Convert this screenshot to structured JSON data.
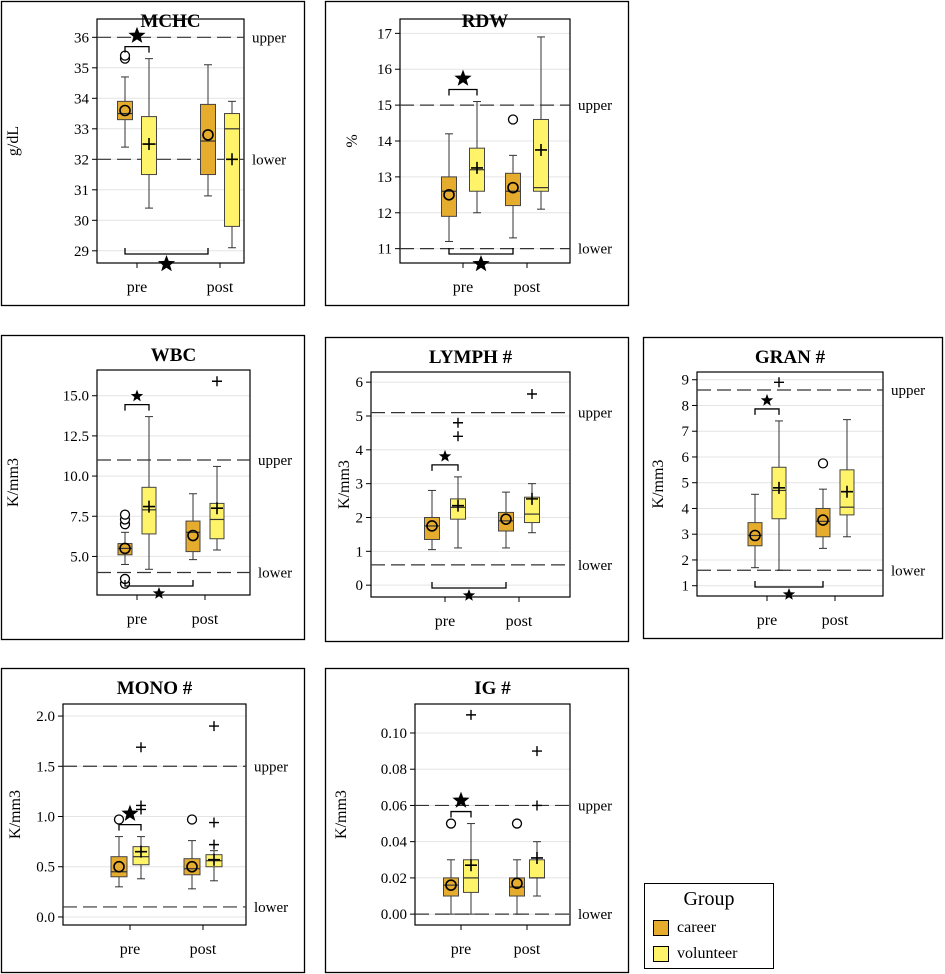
{
  "colors": {
    "career": "#e6ac2e",
    "volunteer": "#fff36a",
    "frame": "#000000",
    "grid": "#e4e4e4"
  },
  "legend": {
    "title": "Group",
    "items": [
      {
        "label": "career",
        "color": "#e6ac2e"
      },
      {
        "label": "volunteer",
        "color": "#fff36a"
      }
    ]
  },
  "chart_data": [
    {
      "type": "boxplot",
      "id": "mchc",
      "title": "MCHC",
      "ylabel": "g/dL",
      "ylim": [
        28.6,
        36.6
      ],
      "yticks": [
        29,
        30,
        31,
        32,
        33,
        34,
        35,
        36
      ],
      "ytick_labels": [
        "29",
        "30",
        "31",
        "32",
        "33",
        "34",
        "35",
        "36"
      ],
      "categories": [
        "pre",
        "post"
      ],
      "reference_lines": [
        {
          "label": "upper",
          "value": 36
        },
        {
          "label": "lower",
          "value": 32
        }
      ],
      "series": [
        {
          "group": "career",
          "category": "pre",
          "whisker_low": 32.4,
          "q1": 33.3,
          "median": 33.5,
          "q3": 33.9,
          "whisker_high": 34.7,
          "mean": 33.6,
          "mean_marker": "circle",
          "outliers": [
            35.3,
            35.4
          ],
          "outlier_marker": "circle"
        },
        {
          "group": "volunteer",
          "category": "pre",
          "whisker_low": 30.4,
          "q1": 31.5,
          "median": 32.5,
          "q3": 33.4,
          "whisker_high": 35.3,
          "mean": 32.5,
          "mean_marker": "plus",
          "outliers": [],
          "outlier_marker": "plus"
        },
        {
          "group": "career",
          "category": "post",
          "whisker_low": 30.8,
          "q1": 31.5,
          "median": 32.6,
          "q3": 33.8,
          "whisker_high": 35.1,
          "mean": 32.8,
          "mean_marker": "circle",
          "outliers": [],
          "outlier_marker": "circle"
        },
        {
          "group": "volunteer",
          "category": "post",
          "whisker_low": 29.1,
          "q1": 29.8,
          "median": 33.0,
          "q3": 33.5,
          "whisker_high": 33.9,
          "mean": 32.0,
          "mean_marker": "plus",
          "outliers": [],
          "outlier_marker": "plus"
        }
      ],
      "significance": [
        {
          "from": "pre",
          "from_group": "career",
          "to": "pre",
          "to_group": "volunteer",
          "position": "top",
          "star": "large"
        },
        {
          "from": "pre",
          "from_group": "career",
          "to": "post",
          "to_group": "career",
          "position": "bottom",
          "star": "large"
        }
      ]
    },
    {
      "type": "boxplot",
      "id": "rdw",
      "title": "RDW",
      "ylabel": "%",
      "ylim": [
        10.6,
        17.4
      ],
      "yticks": [
        11,
        12,
        13,
        14,
        15,
        16,
        17
      ],
      "ytick_labels": [
        "11",
        "12",
        "13",
        "14",
        "15",
        "16",
        "17"
      ],
      "categories": [
        "pre",
        "post"
      ],
      "reference_lines": [
        {
          "label": "upper",
          "value": 15
        },
        {
          "label": "lower",
          "value": 11
        }
      ],
      "series": [
        {
          "group": "career",
          "category": "pre",
          "whisker_low": 11.2,
          "q1": 11.9,
          "median": 12.6,
          "q3": 13.0,
          "whisker_high": 14.2,
          "mean": 12.5,
          "mean_marker": "circle",
          "outliers": [],
          "outlier_marker": "circle"
        },
        {
          "group": "volunteer",
          "category": "pre",
          "whisker_low": 12.0,
          "q1": 12.6,
          "median": 13.2,
          "q3": 13.8,
          "whisker_high": 15.1,
          "mean": 13.25,
          "mean_marker": "plus",
          "outliers": [],
          "outlier_marker": "plus"
        },
        {
          "group": "career",
          "category": "post",
          "whisker_low": 11.3,
          "q1": 12.2,
          "median": 12.6,
          "q3": 13.1,
          "whisker_high": 13.6,
          "mean": 12.7,
          "mean_marker": "circle",
          "outliers": [
            14.6
          ],
          "outlier_marker": "circle"
        },
        {
          "group": "volunteer",
          "category": "post",
          "whisker_low": 12.1,
          "q1": 12.6,
          "median": 12.7,
          "q3": 14.6,
          "whisker_high": 16.9,
          "mean": 13.75,
          "mean_marker": "plus",
          "outliers": [],
          "outlier_marker": "plus"
        }
      ],
      "significance": [
        {
          "from": "pre",
          "from_group": "career",
          "to": "pre",
          "to_group": "volunteer",
          "position": "top",
          "star": "large"
        },
        {
          "from": "pre",
          "from_group": "career",
          "to": "post",
          "to_group": "career",
          "position": "bottom",
          "star": "large"
        }
      ]
    },
    {
      "type": "boxplot",
      "id": "wbc",
      "title": "WBC",
      "ylabel": "K/mm3",
      "ylim": [
        2.6,
        16.6
      ],
      "yticks": [
        5,
        7.5,
        10,
        12.5,
        15
      ],
      "ytick_labels": [
        "5.0",
        "7.5",
        "10.0",
        "12.5",
        "15.0"
      ],
      "categories": [
        "pre",
        "post"
      ],
      "reference_lines": [
        {
          "label": "upper",
          "value": 11
        },
        {
          "label": "lower",
          "value": 4
        }
      ],
      "series": [
        {
          "group": "career",
          "category": "pre",
          "whisker_low": 4.5,
          "q1": 5.1,
          "median": 5.5,
          "q3": 5.8,
          "whisker_high": 6.5,
          "mean": 5.5,
          "mean_marker": "circle",
          "outliers": [
            3.3,
            3.6,
            7.0,
            7.3,
            7.6
          ],
          "outlier_marker": "circle"
        },
        {
          "group": "volunteer",
          "category": "pre",
          "whisker_low": 4.2,
          "q1": 6.4,
          "median": 7.9,
          "q3": 9.3,
          "whisker_high": 13.7,
          "mean": 8.1,
          "mean_marker": "plus",
          "outliers": [],
          "outlier_marker": "plus"
        },
        {
          "group": "career",
          "category": "post",
          "whisker_low": 4.8,
          "q1": 5.3,
          "median": 6.5,
          "q3": 7.2,
          "whisker_high": 8.9,
          "mean": 6.3,
          "mean_marker": "circle",
          "outliers": [],
          "outlier_marker": "circle"
        },
        {
          "group": "volunteer",
          "category": "post",
          "whisker_low": 5.4,
          "q1": 6.1,
          "median": 7.3,
          "q3": 8.3,
          "whisker_high": 10.6,
          "mean": 8.0,
          "mean_marker": "plus",
          "outliers": [
            15.9
          ],
          "outlier_marker": "plus"
        }
      ],
      "significance": [
        {
          "from": "pre",
          "from_group": "career",
          "to": "pre",
          "to_group": "volunteer",
          "position": "top",
          "star": "small"
        },
        {
          "from": "pre",
          "from_group": "career",
          "to": "post",
          "to_group": "career",
          "position": "bottom",
          "star": "small"
        }
      ]
    },
    {
      "type": "boxplot",
      "id": "lymph",
      "title": "LYMPH #",
      "ylabel": "K/mm3",
      "ylim": [
        -0.35,
        6.3
      ],
      "yticks": [
        0,
        1,
        2,
        3,
        4,
        5,
        6
      ],
      "ytick_labels": [
        "0",
        "1",
        "2",
        "3",
        "4",
        "5",
        "6"
      ],
      "categories": [
        "pre",
        "post"
      ],
      "reference_lines": [
        {
          "label": "upper",
          "value": 5.1
        },
        {
          "label": "lower",
          "value": 0.6
        }
      ],
      "series": [
        {
          "group": "career",
          "category": "pre",
          "whisker_low": 1.05,
          "q1": 1.35,
          "median": 1.75,
          "q3": 2.0,
          "whisker_high": 2.8,
          "mean": 1.75,
          "mean_marker": "circle",
          "outliers": [],
          "outlier_marker": "circle"
        },
        {
          "group": "volunteer",
          "category": "pre",
          "whisker_low": 1.1,
          "q1": 1.95,
          "median": 2.3,
          "q3": 2.55,
          "whisker_high": 3.2,
          "mean": 2.35,
          "mean_marker": "plus",
          "outliers": [
            4.4,
            4.8
          ],
          "outlier_marker": "plus"
        },
        {
          "group": "career",
          "category": "post",
          "whisker_low": 1.1,
          "q1": 1.6,
          "median": 1.9,
          "q3": 2.15,
          "whisker_high": 2.75,
          "mean": 1.95,
          "mean_marker": "circle",
          "outliers": [],
          "outlier_marker": "circle"
        },
        {
          "group": "volunteer",
          "category": "post",
          "whisker_low": 1.55,
          "q1": 1.85,
          "median": 2.1,
          "q3": 2.6,
          "whisker_high": 3.0,
          "mean": 2.55,
          "mean_marker": "plus",
          "outliers": [
            5.65
          ],
          "outlier_marker": "plus"
        }
      ],
      "significance": [
        {
          "from": "pre",
          "from_group": "career",
          "to": "pre",
          "to_group": "volunteer",
          "position": "top",
          "star": "small"
        },
        {
          "from": "pre",
          "from_group": "career",
          "to": "post",
          "to_group": "career",
          "position": "bottom",
          "star": "small"
        }
      ]
    },
    {
      "type": "boxplot",
      "id": "gran",
      "title": "GRAN #",
      "ylabel": "K/mm3",
      "ylim": [
        0.6,
        9.3
      ],
      "yticks": [
        1,
        2,
        3,
        4,
        5,
        6,
        7,
        8,
        9
      ],
      "ytick_labels": [
        "1",
        "2",
        "3",
        "4",
        "5",
        "6",
        "7",
        "8",
        "9"
      ],
      "categories": [
        "pre",
        "post"
      ],
      "reference_lines": [
        {
          "label": "upper",
          "value": 8.6
        },
        {
          "label": "lower",
          "value": 1.6
        }
      ],
      "series": [
        {
          "group": "career",
          "category": "pre",
          "whisker_low": 1.7,
          "q1": 2.55,
          "median": 2.95,
          "q3": 3.45,
          "whisker_high": 4.55,
          "mean": 2.95,
          "mean_marker": "circle",
          "outliers": [],
          "outlier_marker": "circle"
        },
        {
          "group": "volunteer",
          "category": "pre",
          "whisker_low": 1.6,
          "q1": 3.6,
          "median": 4.7,
          "q3": 5.6,
          "whisker_high": 7.4,
          "mean": 4.8,
          "mean_marker": "plus",
          "outliers": [
            8.9
          ],
          "outlier_marker": "plus"
        },
        {
          "group": "career",
          "category": "post",
          "whisker_low": 2.45,
          "q1": 2.9,
          "median": 3.5,
          "q3": 4.0,
          "whisker_high": 4.75,
          "mean": 3.55,
          "mean_marker": "circle",
          "outliers": [
            5.75
          ],
          "outlier_marker": "circle"
        },
        {
          "group": "volunteer",
          "category": "post",
          "whisker_low": 2.9,
          "q1": 3.75,
          "median": 4.05,
          "q3": 5.5,
          "whisker_high": 7.45,
          "mean": 4.65,
          "mean_marker": "plus",
          "outliers": [],
          "outlier_marker": "plus"
        }
      ],
      "significance": [
        {
          "from": "pre",
          "from_group": "career",
          "to": "pre",
          "to_group": "volunteer",
          "position": "top",
          "star": "small"
        },
        {
          "from": "pre",
          "from_group": "career",
          "to": "post",
          "to_group": "career",
          "position": "bottom",
          "star": "small"
        }
      ]
    },
    {
      "type": "boxplot",
      "id": "mono",
      "title": "MONO #",
      "ylabel": "K/mm3",
      "ylim": [
        -0.08,
        2.12
      ],
      "yticks": [
        0,
        0.5,
        1,
        1.5,
        2
      ],
      "ytick_labels": [
        "0.0",
        "0.5",
        "1.0",
        "1.5",
        "2.0"
      ],
      "categories": [
        "pre",
        "post"
      ],
      "reference_lines": [
        {
          "label": "upper",
          "value": 1.5
        },
        {
          "label": "lower",
          "value": 0.1
        }
      ],
      "series": [
        {
          "group": "career",
          "category": "pre",
          "whisker_low": 0.3,
          "q1": 0.4,
          "median": 0.45,
          "q3": 0.6,
          "whisker_high": 0.8,
          "mean": 0.5,
          "mean_marker": "circle",
          "outliers": [
            0.97
          ],
          "outlier_marker": "circle"
        },
        {
          "group": "volunteer",
          "category": "pre",
          "whisker_low": 0.38,
          "q1": 0.52,
          "median": 0.6,
          "q3": 0.7,
          "whisker_high": 0.8,
          "mean": 0.65,
          "mean_marker": "plus",
          "outliers": [
            1.07,
            1.11,
            1.69
          ],
          "outlier_marker": "plus"
        },
        {
          "group": "career",
          "category": "post",
          "whisker_low": 0.28,
          "q1": 0.42,
          "median": 0.48,
          "q3": 0.58,
          "whisker_high": 0.76,
          "mean": 0.5,
          "mean_marker": "circle",
          "outliers": [
            0.97
          ],
          "outlier_marker": "circle"
        },
        {
          "group": "volunteer",
          "category": "post",
          "whisker_low": 0.36,
          "q1": 0.5,
          "median": 0.56,
          "q3": 0.62,
          "whisker_high": 0.66,
          "mean": 0.57,
          "mean_marker": "plus",
          "outliers": [
            0.72,
            0.94,
            1.9
          ],
          "outlier_marker": "plus"
        }
      ],
      "significance": [
        {
          "from": "pre",
          "from_group": "career",
          "to": "pre",
          "to_group": "volunteer",
          "position": "top",
          "star": "large"
        }
      ]
    },
    {
      "type": "boxplot",
      "id": "ig",
      "title": "IG #",
      "ylabel": "K/mm3",
      "ylim": [
        -0.006,
        0.116
      ],
      "yticks": [
        0,
        0.02,
        0.04,
        0.06,
        0.08,
        0.1
      ],
      "ytick_labels": [
        "0.00",
        "0.02",
        "0.04",
        "0.06",
        "0.08",
        "0.10"
      ],
      "categories": [
        "pre",
        "post"
      ],
      "reference_lines": [
        {
          "label": "upper",
          "value": 0.06
        },
        {
          "label": "lower",
          "value": 0.0
        }
      ],
      "series": [
        {
          "group": "career",
          "category": "pre",
          "whisker_low": 0.0,
          "q1": 0.01,
          "median": 0.016,
          "q3": 0.02,
          "whisker_high": 0.03,
          "mean": 0.016,
          "mean_marker": "circle",
          "outliers": [
            0.05
          ],
          "outlier_marker": "circle"
        },
        {
          "group": "volunteer",
          "category": "pre",
          "whisker_low": 0.0,
          "q1": 0.012,
          "median": 0.02,
          "q3": 0.03,
          "whisker_high": 0.05,
          "mean": 0.027,
          "mean_marker": "plus",
          "outliers": [
            0.11
          ],
          "outlier_marker": "plus"
        },
        {
          "group": "career",
          "category": "post",
          "whisker_low": 0.0,
          "q1": 0.01,
          "median": 0.015,
          "q3": 0.02,
          "whisker_high": 0.03,
          "mean": 0.017,
          "mean_marker": "circle",
          "outliers": [
            0.05
          ],
          "outlier_marker": "circle"
        },
        {
          "group": "volunteer",
          "category": "post",
          "whisker_low": 0.01,
          "q1": 0.02,
          "median": 0.02,
          "q3": 0.03,
          "whisker_high": 0.04,
          "mean": 0.031,
          "mean_marker": "plus",
          "outliers": [
            0.06,
            0.09
          ],
          "outlier_marker": "plus"
        }
      ],
      "significance": [
        {
          "from": "pre",
          "from_group": "career",
          "to": "pre",
          "to_group": "volunteer",
          "position": "top",
          "star": "large"
        }
      ]
    }
  ]
}
